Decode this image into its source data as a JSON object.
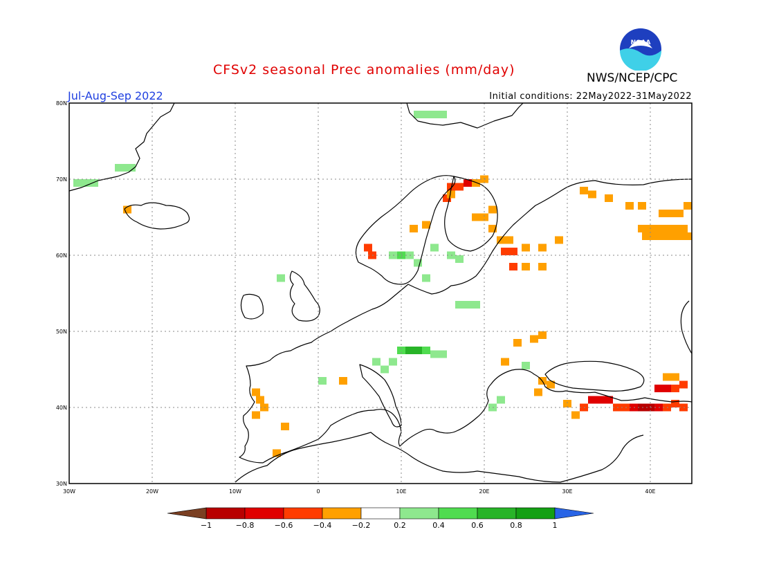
{
  "header": {
    "title": "CFSv2 seasonal Prec anomalies (mm/day)",
    "season": "Jul-Aug-Sep 2022",
    "initial_conditions": "Initial conditions: 22May2022-31May2022",
    "agency": "NWS/NCEP/CPC",
    "logo_text": "NOAA"
  },
  "map": {
    "lon_range": [
      -30,
      45
    ],
    "lat_range": [
      30,
      80
    ],
    "lat_labels": [
      "80N",
      "70N",
      "60N",
      "50N",
      "40N",
      "30N"
    ],
    "lon_labels": [
      "30W",
      "20W",
      "10W",
      "0",
      "10E",
      "20E",
      "30E",
      "40E"
    ],
    "gridlines": true
  },
  "legend": {
    "tick_labels": [
      "-1",
      "-0.8",
      "-0.6",
      "-0.4",
      "-0.2",
      "0.2",
      "0.4",
      "0.6",
      "0.8",
      "1"
    ],
    "colors": [
      "#7a3f22",
      "#b80000",
      "#e00000",
      "#ff3c00",
      "#ffa000",
      "#ffffff",
      "#8ee88e",
      "#50dc50",
      "#28b428",
      "#14a014",
      "#2864e6"
    ]
  },
  "chart_data": {
    "type": "heatmap",
    "title": "CFSv2 seasonal Prec anomalies (mm/day)",
    "units": "mm/day",
    "cells": [
      {
        "lon": -24,
        "lat": 71.5,
        "value": 0.3
      },
      {
        "lon": -23,
        "lat": 71.5,
        "value": 0.3
      },
      {
        "lon": -22.5,
        "lat": 71.5,
        "value": 0.3
      },
      {
        "lon": -29,
        "lat": 69.5,
        "value": 0.3
      },
      {
        "lon": -28,
        "lat": 69.5,
        "value": 0.3
      },
      {
        "lon": -27,
        "lat": 69.5,
        "value": 0.3
      },
      {
        "lon": -23,
        "lat": 66,
        "value": -0.3
      },
      {
        "lon": 12,
        "lat": 78.5,
        "value": 0.3
      },
      {
        "lon": 13,
        "lat": 78.5,
        "value": 0.3
      },
      {
        "lon": 14,
        "lat": 78.5,
        "value": 0.3
      },
      {
        "lon": 15,
        "lat": 78.5,
        "value": 0.3
      },
      {
        "lon": 16,
        "lat": 69,
        "value": -0.5
      },
      {
        "lon": 17,
        "lat": 69,
        "value": -0.5
      },
      {
        "lon": 18,
        "lat": 69.5,
        "value": -0.7
      },
      {
        "lon": 19,
        "lat": 69.5,
        "value": -0.3
      },
      {
        "lon": 20,
        "lat": 70,
        "value": -0.3
      },
      {
        "lon": 15.5,
        "lat": 67.5,
        "value": -0.5
      },
      {
        "lon": 16,
        "lat": 68,
        "value": -0.3
      },
      {
        "lon": 19,
        "lat": 65,
        "value": -0.3
      },
      {
        "lon": 20,
        "lat": 65,
        "value": -0.3
      },
      {
        "lon": 21,
        "lat": 66,
        "value": -0.3
      },
      {
        "lon": 21,
        "lat": 63.5,
        "value": -0.3
      },
      {
        "lon": 22,
        "lat": 62,
        "value": -0.3
      },
      {
        "lon": 23,
        "lat": 62,
        "value": -0.3
      },
      {
        "lon": 22.5,
        "lat": 60.5,
        "value": -0.5
      },
      {
        "lon": 23.5,
        "lat": 60.5,
        "value": -0.5
      },
      {
        "lon": 25,
        "lat": 61,
        "value": -0.3
      },
      {
        "lon": 27,
        "lat": 61,
        "value": -0.3
      },
      {
        "lon": 29,
        "lat": 62,
        "value": -0.3
      },
      {
        "lon": 23.5,
        "lat": 58.5,
        "value": -0.5
      },
      {
        "lon": 25,
        "lat": 58.5,
        "value": -0.3
      },
      {
        "lon": 27,
        "lat": 58.5,
        "value": -0.3
      },
      {
        "lon": 13,
        "lat": 64,
        "value": -0.3
      },
      {
        "lon": 11.5,
        "lat": 63.5,
        "value": -0.3
      },
      {
        "lon": 6,
        "lat": 61,
        "value": -0.5
      },
      {
        "lon": 6.5,
        "lat": 60,
        "value": -0.5
      },
      {
        "lon": 9,
        "lat": 60,
        "value": 0.3
      },
      {
        "lon": 10,
        "lat": 60,
        "value": 0.5
      },
      {
        "lon": 11,
        "lat": 60,
        "value": 0.3
      },
      {
        "lon": 12,
        "lat": 59,
        "value": 0.3
      },
      {
        "lon": 13,
        "lat": 57,
        "value": 0.3
      },
      {
        "lon": 14,
        "lat": 61,
        "value": 0.3
      },
      {
        "lon": 16,
        "lat": 60,
        "value": 0.3
      },
      {
        "lon": 17,
        "lat": 59.5,
        "value": 0.3
      },
      {
        "lon": -4.5,
        "lat": 57,
        "value": 0.3
      },
      {
        "lon": 17,
        "lat": 53.5,
        "value": 0.3
      },
      {
        "lon": 18,
        "lat": 53.5,
        "value": 0.3
      },
      {
        "lon": 19,
        "lat": 53.5,
        "value": 0.3
      },
      {
        "lon": 10,
        "lat": 47.5,
        "value": 0.5
      },
      {
        "lon": 11,
        "lat": 47.5,
        "value": 0.7
      },
      {
        "lon": 12,
        "lat": 47.5,
        "value": 0.7
      },
      {
        "lon": 13,
        "lat": 47.5,
        "value": 0.5
      },
      {
        "lon": 14,
        "lat": 47,
        "value": 0.3
      },
      {
        "lon": 15,
        "lat": 47,
        "value": 0.3
      },
      {
        "lon": 7,
        "lat": 46,
        "value": 0.3
      },
      {
        "lon": 8,
        "lat": 45,
        "value": 0.3
      },
      {
        "lon": 9,
        "lat": 46,
        "value": 0.3
      },
      {
        "lon": 0.5,
        "lat": 43.5,
        "value": 0.3
      },
      {
        "lon": 3,
        "lat": 43.5,
        "value": -0.3
      },
      {
        "lon": 26,
        "lat": 49,
        "value": -0.3
      },
      {
        "lon": 27,
        "lat": 49.5,
        "value": -0.3
      },
      {
        "lon": 24,
        "lat": 48.5,
        "value": -0.3
      },
      {
        "lon": 22.5,
        "lat": 46,
        "value": -0.3
      },
      {
        "lon": 25,
        "lat": 45.5,
        "value": 0.3
      },
      {
        "lon": 27,
        "lat": 43.5,
        "value": -0.3
      },
      {
        "lon": 28,
        "lat": 43,
        "value": -0.3
      },
      {
        "lon": 26.5,
        "lat": 42,
        "value": -0.3
      },
      {
        "lon": 22,
        "lat": 41,
        "value": 0.3
      },
      {
        "lon": 21,
        "lat": 40,
        "value": 0.3
      },
      {
        "lon": -7.5,
        "lat": 42,
        "value": -0.3
      },
      {
        "lon": -7,
        "lat": 41,
        "value": -0.3
      },
      {
        "lon": -6.5,
        "lat": 40,
        "value": -0.3
      },
      {
        "lon": -7.5,
        "lat": 39,
        "value": -0.3
      },
      {
        "lon": -4,
        "lat": 37.5,
        "value": -0.3
      },
      {
        "lon": -5,
        "lat": 34,
        "value": -0.3
      },
      {
        "lon": 30,
        "lat": 40.5,
        "value": -0.3
      },
      {
        "lon": 31,
        "lat": 39,
        "value": -0.3
      },
      {
        "lon": 32,
        "lat": 40,
        "value": -0.5
      },
      {
        "lon": 33,
        "lat": 41,
        "value": -0.7
      },
      {
        "lon": 34,
        "lat": 41,
        "value": -0.7
      },
      {
        "lon": 35,
        "lat": 41,
        "value": -0.7
      },
      {
        "lon": 36,
        "lat": 40,
        "value": -0.5
      },
      {
        "lon": 37,
        "lat": 40,
        "value": -0.5
      },
      {
        "lon": 38,
        "lat": 40,
        "value": -0.7
      },
      {
        "lon": 39,
        "lat": 40,
        "value": -0.9
      },
      {
        "lon": 40,
        "lat": 40,
        "value": -0.9
      },
      {
        "lon": 41,
        "lat": 40,
        "value": -0.7
      },
      {
        "lon": 42,
        "lat": 40,
        "value": -0.5
      },
      {
        "lon": 43,
        "lat": 40.5,
        "value": -0.5
      },
      {
        "lon": 44,
        "lat": 40,
        "value": -0.5
      },
      {
        "lon": 41,
        "lat": 42.5,
        "value": -0.7
      },
      {
        "lon": 42,
        "lat": 42.5,
        "value": -0.7
      },
      {
        "lon": 43,
        "lat": 42.5,
        "value": -0.5
      },
      {
        "lon": 42,
        "lat": 44,
        "value": -0.3
      },
      {
        "lon": 43,
        "lat": 44,
        "value": -0.3
      },
      {
        "lon": 44,
        "lat": 43,
        "value": -0.5
      },
      {
        "lon": 32,
        "lat": 68.5,
        "value": -0.3
      },
      {
        "lon": 33,
        "lat": 68,
        "value": -0.3
      },
      {
        "lon": 35,
        "lat": 67.5,
        "value": -0.3
      },
      {
        "lon": 37.5,
        "lat": 66.5,
        "value": -0.3
      },
      {
        "lon": 39,
        "lat": 66.5,
        "value": -0.3
      },
      {
        "lon": 44.5,
        "lat": 66.5,
        "value": -0.3
      },
      {
        "lon": 41.5,
        "lat": 65.5,
        "value": -0.3
      },
      {
        "lon": 42.5,
        "lat": 65.5,
        "value": -0.3
      },
      {
        "lon": 43.5,
        "lat": 65.5,
        "value": -0.3
      },
      {
        "lon": 39,
        "lat": 63.5,
        "value": -0.3
      },
      {
        "lon": 40,
        "lat": 63.5,
        "value": -0.3
      },
      {
        "lon": 41,
        "lat": 63.5,
        "value": -0.3
      },
      {
        "lon": 42,
        "lat": 63.5,
        "value": -0.3
      },
      {
        "lon": 43,
        "lat": 63.5,
        "value": -0.3
      },
      {
        "lon": 44,
        "lat": 63.5,
        "value": -0.3
      },
      {
        "lon": 39.5,
        "lat": 62.5,
        "value": -0.3
      },
      {
        "lon": 40.5,
        "lat": 62.5,
        "value": -0.3
      },
      {
        "lon": 41.5,
        "lat": 62.5,
        "value": -0.3
      },
      {
        "lon": 42.5,
        "lat": 62.5,
        "value": -0.3
      },
      {
        "lon": 43.5,
        "lat": 62.5,
        "value": -0.3
      },
      {
        "lon": 44.5,
        "lat": 62.5,
        "value": -0.3
      }
    ]
  }
}
